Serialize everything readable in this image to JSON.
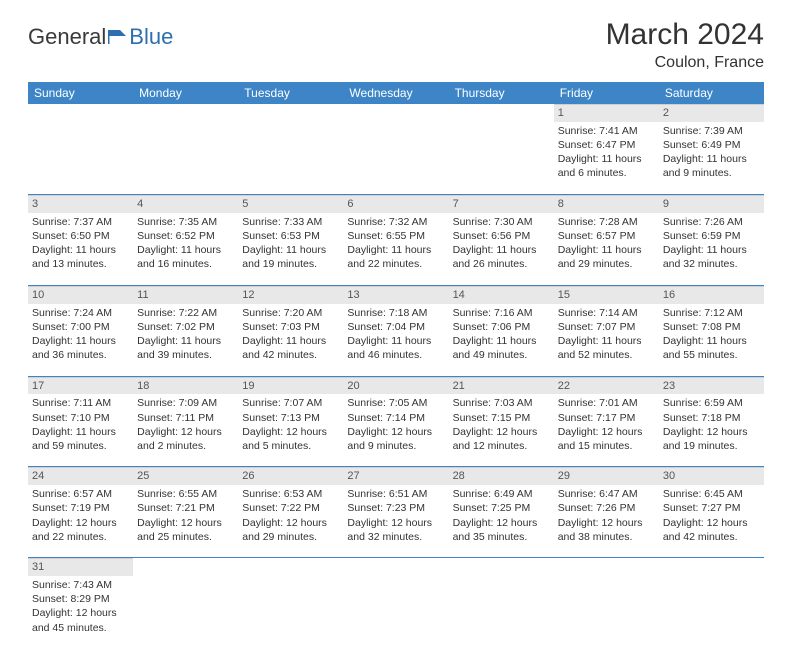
{
  "brand": {
    "part1": "General",
    "part2": "Blue"
  },
  "title": "March 2024",
  "location": "Coulon, France",
  "style": {
    "header_bg": "#3d85c6",
    "header_text": "#ffffff",
    "daynum_bg": "#e8e8e8",
    "row_divider": "#3d85c6",
    "page_bg": "#ffffff",
    "title_fontsize": 30,
    "location_fontsize": 16,
    "th_fontsize": 12,
    "cell_fontsize": 10.5
  },
  "weekdays": [
    "Sunday",
    "Monday",
    "Tuesday",
    "Wednesday",
    "Thursday",
    "Friday",
    "Saturday"
  ],
  "weeks": [
    [
      null,
      null,
      null,
      null,
      null,
      {
        "day": "1",
        "sunrise": "Sunrise: 7:41 AM",
        "sunset": "Sunset: 6:47 PM",
        "daylight1": "Daylight: 11 hours",
        "daylight2": "and 6 minutes."
      },
      {
        "day": "2",
        "sunrise": "Sunrise: 7:39 AM",
        "sunset": "Sunset: 6:49 PM",
        "daylight1": "Daylight: 11 hours",
        "daylight2": "and 9 minutes."
      }
    ],
    [
      {
        "day": "3",
        "sunrise": "Sunrise: 7:37 AM",
        "sunset": "Sunset: 6:50 PM",
        "daylight1": "Daylight: 11 hours",
        "daylight2": "and 13 minutes."
      },
      {
        "day": "4",
        "sunrise": "Sunrise: 7:35 AM",
        "sunset": "Sunset: 6:52 PM",
        "daylight1": "Daylight: 11 hours",
        "daylight2": "and 16 minutes."
      },
      {
        "day": "5",
        "sunrise": "Sunrise: 7:33 AM",
        "sunset": "Sunset: 6:53 PM",
        "daylight1": "Daylight: 11 hours",
        "daylight2": "and 19 minutes."
      },
      {
        "day": "6",
        "sunrise": "Sunrise: 7:32 AM",
        "sunset": "Sunset: 6:55 PM",
        "daylight1": "Daylight: 11 hours",
        "daylight2": "and 22 minutes."
      },
      {
        "day": "7",
        "sunrise": "Sunrise: 7:30 AM",
        "sunset": "Sunset: 6:56 PM",
        "daylight1": "Daylight: 11 hours",
        "daylight2": "and 26 minutes."
      },
      {
        "day": "8",
        "sunrise": "Sunrise: 7:28 AM",
        "sunset": "Sunset: 6:57 PM",
        "daylight1": "Daylight: 11 hours",
        "daylight2": "and 29 minutes."
      },
      {
        "day": "9",
        "sunrise": "Sunrise: 7:26 AM",
        "sunset": "Sunset: 6:59 PM",
        "daylight1": "Daylight: 11 hours",
        "daylight2": "and 32 minutes."
      }
    ],
    [
      {
        "day": "10",
        "sunrise": "Sunrise: 7:24 AM",
        "sunset": "Sunset: 7:00 PM",
        "daylight1": "Daylight: 11 hours",
        "daylight2": "and 36 minutes."
      },
      {
        "day": "11",
        "sunrise": "Sunrise: 7:22 AM",
        "sunset": "Sunset: 7:02 PM",
        "daylight1": "Daylight: 11 hours",
        "daylight2": "and 39 minutes."
      },
      {
        "day": "12",
        "sunrise": "Sunrise: 7:20 AM",
        "sunset": "Sunset: 7:03 PM",
        "daylight1": "Daylight: 11 hours",
        "daylight2": "and 42 minutes."
      },
      {
        "day": "13",
        "sunrise": "Sunrise: 7:18 AM",
        "sunset": "Sunset: 7:04 PM",
        "daylight1": "Daylight: 11 hours",
        "daylight2": "and 46 minutes."
      },
      {
        "day": "14",
        "sunrise": "Sunrise: 7:16 AM",
        "sunset": "Sunset: 7:06 PM",
        "daylight1": "Daylight: 11 hours",
        "daylight2": "and 49 minutes."
      },
      {
        "day": "15",
        "sunrise": "Sunrise: 7:14 AM",
        "sunset": "Sunset: 7:07 PM",
        "daylight1": "Daylight: 11 hours",
        "daylight2": "and 52 minutes."
      },
      {
        "day": "16",
        "sunrise": "Sunrise: 7:12 AM",
        "sunset": "Sunset: 7:08 PM",
        "daylight1": "Daylight: 11 hours",
        "daylight2": "and 55 minutes."
      }
    ],
    [
      {
        "day": "17",
        "sunrise": "Sunrise: 7:11 AM",
        "sunset": "Sunset: 7:10 PM",
        "daylight1": "Daylight: 11 hours",
        "daylight2": "and 59 minutes."
      },
      {
        "day": "18",
        "sunrise": "Sunrise: 7:09 AM",
        "sunset": "Sunset: 7:11 PM",
        "daylight1": "Daylight: 12 hours",
        "daylight2": "and 2 minutes."
      },
      {
        "day": "19",
        "sunrise": "Sunrise: 7:07 AM",
        "sunset": "Sunset: 7:13 PM",
        "daylight1": "Daylight: 12 hours",
        "daylight2": "and 5 minutes."
      },
      {
        "day": "20",
        "sunrise": "Sunrise: 7:05 AM",
        "sunset": "Sunset: 7:14 PM",
        "daylight1": "Daylight: 12 hours",
        "daylight2": "and 9 minutes."
      },
      {
        "day": "21",
        "sunrise": "Sunrise: 7:03 AM",
        "sunset": "Sunset: 7:15 PM",
        "daylight1": "Daylight: 12 hours",
        "daylight2": "and 12 minutes."
      },
      {
        "day": "22",
        "sunrise": "Sunrise: 7:01 AM",
        "sunset": "Sunset: 7:17 PM",
        "daylight1": "Daylight: 12 hours",
        "daylight2": "and 15 minutes."
      },
      {
        "day": "23",
        "sunrise": "Sunrise: 6:59 AM",
        "sunset": "Sunset: 7:18 PM",
        "daylight1": "Daylight: 12 hours",
        "daylight2": "and 19 minutes."
      }
    ],
    [
      {
        "day": "24",
        "sunrise": "Sunrise: 6:57 AM",
        "sunset": "Sunset: 7:19 PM",
        "daylight1": "Daylight: 12 hours",
        "daylight2": "and 22 minutes."
      },
      {
        "day": "25",
        "sunrise": "Sunrise: 6:55 AM",
        "sunset": "Sunset: 7:21 PM",
        "daylight1": "Daylight: 12 hours",
        "daylight2": "and 25 minutes."
      },
      {
        "day": "26",
        "sunrise": "Sunrise: 6:53 AM",
        "sunset": "Sunset: 7:22 PM",
        "daylight1": "Daylight: 12 hours",
        "daylight2": "and 29 minutes."
      },
      {
        "day": "27",
        "sunrise": "Sunrise: 6:51 AM",
        "sunset": "Sunset: 7:23 PM",
        "daylight1": "Daylight: 12 hours",
        "daylight2": "and 32 minutes."
      },
      {
        "day": "28",
        "sunrise": "Sunrise: 6:49 AM",
        "sunset": "Sunset: 7:25 PM",
        "daylight1": "Daylight: 12 hours",
        "daylight2": "and 35 minutes."
      },
      {
        "day": "29",
        "sunrise": "Sunrise: 6:47 AM",
        "sunset": "Sunset: 7:26 PM",
        "daylight1": "Daylight: 12 hours",
        "daylight2": "and 38 minutes."
      },
      {
        "day": "30",
        "sunrise": "Sunrise: 6:45 AM",
        "sunset": "Sunset: 7:27 PM",
        "daylight1": "Daylight: 12 hours",
        "daylight2": "and 42 minutes."
      }
    ],
    [
      {
        "day": "31",
        "sunrise": "Sunrise: 7:43 AM",
        "sunset": "Sunset: 8:29 PM",
        "daylight1": "Daylight: 12 hours",
        "daylight2": "and 45 minutes."
      },
      null,
      null,
      null,
      null,
      null,
      null
    ]
  ]
}
